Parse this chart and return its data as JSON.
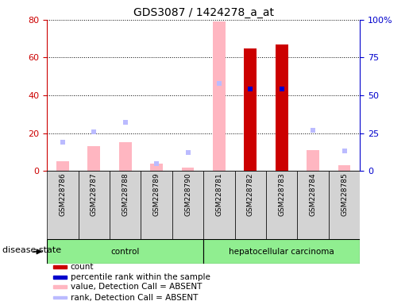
{
  "title": "GDS3087 / 1424278_a_at",
  "samples": [
    "GSM228786",
    "GSM228787",
    "GSM228788",
    "GSM228789",
    "GSM228790",
    "GSM228781",
    "GSM228782",
    "GSM228783",
    "GSM228784",
    "GSM228785"
  ],
  "count_values": [
    null,
    null,
    null,
    null,
    null,
    null,
    65,
    67,
    null,
    null
  ],
  "percentile_rank": [
    null,
    null,
    null,
    null,
    null,
    null,
    54,
    54,
    null,
    null
  ],
  "value_absent": [
    5,
    13,
    15,
    4,
    1.5,
    79,
    null,
    null,
    11,
    3
  ],
  "rank_absent": [
    19,
    26,
    32,
    5,
    12,
    58,
    null,
    null,
    27,
    13
  ],
  "group_labels": [
    "control",
    "hepatocellular carcinoma"
  ],
  "left_axis_color": "#CC0000",
  "right_axis_color": "#0000CC",
  "left_ylim": [
    0,
    80
  ],
  "right_ylim": [
    0,
    100
  ],
  "left_yticks": [
    0,
    20,
    40,
    60,
    80
  ],
  "right_yticks": [
    0,
    25,
    50,
    75,
    100
  ],
  "right_yticklabels": [
    "0",
    "25",
    "50",
    "75",
    "100%"
  ],
  "count_color": "#CC0000",
  "percentile_color": "#0000CC",
  "value_absent_color": "#FFB6C1",
  "rank_absent_color": "#BBBBFF",
  "bg_color": "#FFFFFF",
  "sample_bg_color": "#D3D3D3",
  "group_color": "#90EE90",
  "disease_state_label": "disease state",
  "legend_items": [
    {
      "label": "count",
      "color": "#CC0000"
    },
    {
      "label": "percentile rank within the sample",
      "color": "#0000CC"
    },
    {
      "label": "value, Detection Call = ABSENT",
      "color": "#FFB6C1"
    },
    {
      "label": "rank, Detection Call = ABSENT",
      "color": "#BBBBFF"
    }
  ]
}
